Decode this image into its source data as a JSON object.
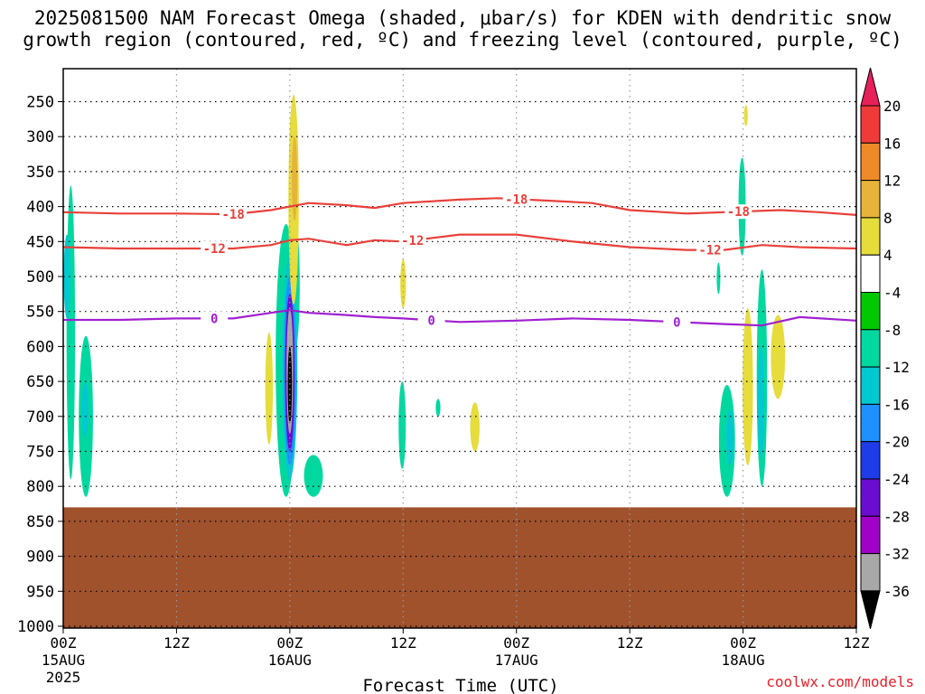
{
  "title_line1": "2025081500 NAM Forecast Omega (shaded, μbar/s) for KDEN with dendritic snow",
  "title_line2": "growth region (contoured, red, ºC) and freezing level (contoured, purple, ºC)",
  "credit": "coolwx.com/models",
  "chart_data": {
    "type": "heatmap",
    "xlabel": "Forecast Time (UTC)",
    "x_ticks": [
      {
        "hour": 0,
        "label": "00Z",
        "sub1": "15AUG",
        "sub2": "2025"
      },
      {
        "hour": 12,
        "label": "12Z",
        "sub1": "",
        "sub2": ""
      },
      {
        "hour": 24,
        "label": "00Z",
        "sub1": "16AUG",
        "sub2": ""
      },
      {
        "hour": 36,
        "label": "12Z",
        "sub1": "",
        "sub2": ""
      },
      {
        "hour": 48,
        "label": "00Z",
        "sub1": "17AUG",
        "sub2": ""
      },
      {
        "hour": 60,
        "label": "12Z",
        "sub1": "",
        "sub2": ""
      },
      {
        "hour": 72,
        "label": "00Z",
        "sub1": "18AUG",
        "sub2": ""
      },
      {
        "hour": 84,
        "label": "12Z",
        "sub1": "",
        "sub2": ""
      }
    ],
    "x_range_hours": [
      0,
      84
    ],
    "y_ticks": [
      250,
      300,
      350,
      400,
      450,
      500,
      550,
      600,
      650,
      700,
      750,
      800,
      850,
      900,
      950,
      1000
    ],
    "y_range_mb": [
      200,
      1025
    ],
    "grid": true,
    "terrain_pressure_mb": 830,
    "terrain_color": "#a0522d",
    "colorbar": {
      "ticks": [
        "20",
        "16",
        "12",
        "8",
        "4",
        "-4",
        "-8",
        "-12",
        "-16",
        "-20",
        "-24",
        "-28",
        "-32",
        "-36"
      ],
      "colors": [
        "#e8205a",
        "#f03a3a",
        "#ee8a28",
        "#e6b43a",
        "#e6dc3c",
        "#ffffff",
        "#00c800",
        "#00d8a0",
        "#00c8d0",
        "#1e90ff",
        "#1e3ce8",
        "#6a0dd0",
        "#a000c8",
        "#a8a8a8",
        "#000000"
      ]
    },
    "contours": [
      {
        "label": "-18",
        "color": "#e8403a",
        "label_hours": [
          18,
          48,
          71.5
        ],
        "points": [
          [
            0,
            408
          ],
          [
            6,
            410
          ],
          [
            12,
            410
          ],
          [
            18,
            411
          ],
          [
            22,
            405
          ],
          [
            24,
            400
          ],
          [
            26,
            395
          ],
          [
            30,
            398
          ],
          [
            33,
            402
          ],
          [
            36,
            395
          ],
          [
            42,
            390
          ],
          [
            46,
            388
          ],
          [
            52,
            392
          ],
          [
            56,
            395
          ],
          [
            60,
            405
          ],
          [
            66,
            410
          ],
          [
            70,
            408
          ],
          [
            76,
            405
          ],
          [
            80,
            408
          ],
          [
            84,
            412
          ]
        ]
      },
      {
        "label": "-12",
        "color": "#e8403a",
        "label_hours": [
          16,
          37,
          68.5
        ],
        "points": [
          [
            0,
            458
          ],
          [
            6,
            460
          ],
          [
            12,
            460
          ],
          [
            18,
            460
          ],
          [
            22,
            455
          ],
          [
            24,
            448
          ],
          [
            26,
            446
          ],
          [
            30,
            455
          ],
          [
            33,
            448
          ],
          [
            36,
            450
          ],
          [
            42,
            440
          ],
          [
            48,
            440
          ],
          [
            54,
            450
          ],
          [
            60,
            458
          ],
          [
            66,
            462
          ],
          [
            70,
            462
          ],
          [
            74,
            455
          ],
          [
            78,
            458
          ],
          [
            84,
            460
          ]
        ]
      },
      {
        "label": "0",
        "color": "#a020d0",
        "label_hours": [
          16,
          39,
          65
        ],
        "points": [
          [
            0,
            562
          ],
          [
            6,
            562
          ],
          [
            12,
            560
          ],
          [
            18,
            560
          ],
          [
            22,
            552
          ],
          [
            24,
            548
          ],
          [
            26,
            552
          ],
          [
            30,
            555
          ],
          [
            33,
            558
          ],
          [
            36,
            560
          ],
          [
            42,
            565
          ],
          [
            48,
            563
          ],
          [
            54,
            560
          ],
          [
            60,
            562
          ],
          [
            65,
            565
          ],
          [
            70,
            568
          ],
          [
            74,
            570
          ],
          [
            78,
            558
          ],
          [
            84,
            563
          ]
        ]
      }
    ],
    "omega_blobs": [
      {
        "hour": 0.8,
        "p_top": 370,
        "p_bot": 790,
        "halfwidth_h": 0.45,
        "level": "-8"
      },
      {
        "hour": 2.4,
        "p_top": 585,
        "p_bot": 815,
        "halfwidth_h": 0.75,
        "level": "-8"
      },
      {
        "hour": 0.4,
        "p_top": 440,
        "p_bot": 560,
        "halfwidth_h": 0.35,
        "level": "-12"
      },
      {
        "hour": 2.3,
        "p_top": 650,
        "p_bot": 730,
        "halfwidth_h": 0.35,
        "level": "-12"
      },
      {
        "hour": 21.8,
        "p_top": 580,
        "p_bot": 740,
        "halfwidth_h": 0.4,
        "level": "4"
      },
      {
        "hour": 23.6,
        "p_top": 425,
        "p_bot": 815,
        "halfwidth_h": 1.1,
        "level": "-8"
      },
      {
        "hour": 24.6,
        "p_top": 425,
        "p_bot": 600,
        "halfwidth_h": 0.45,
        "level": "-8"
      },
      {
        "hour": 24.0,
        "p_top": 470,
        "p_bot": 790,
        "halfwidth_h": 0.8,
        "level": "-12"
      },
      {
        "hour": 24.0,
        "p_top": 500,
        "p_bot": 770,
        "halfwidth_h": 0.65,
        "level": "-16"
      },
      {
        "hour": 24.0,
        "p_top": 525,
        "p_bot": 750,
        "halfwidth_h": 0.5,
        "level": "-24"
      },
      {
        "hour": 24.0,
        "p_top": 545,
        "p_bot": 725,
        "halfwidth_h": 0.35,
        "level": "-32"
      },
      {
        "hour": 24.0,
        "p_top": 600,
        "p_bot": 710,
        "halfwidth_h": 0.22,
        "level": "-36"
      },
      {
        "hour": 26.5,
        "p_top": 755,
        "p_bot": 815,
        "halfwidth_h": 1.0,
        "level": "-8"
      },
      {
        "hour": 24.4,
        "p_top": 240,
        "p_bot": 540,
        "halfwidth_h": 0.55,
        "level": "4"
      },
      {
        "hour": 24.5,
        "p_top": 300,
        "p_bot": 420,
        "halfwidth_h": 0.3,
        "level": "8"
      },
      {
        "hour": 36.0,
        "p_top": 475,
        "p_bot": 545,
        "halfwidth_h": 0.3,
        "level": "4"
      },
      {
        "hour": 35.9,
        "p_top": 650,
        "p_bot": 775,
        "halfwidth_h": 0.38,
        "level": "-8"
      },
      {
        "hour": 39.7,
        "p_top": 675,
        "p_bot": 700,
        "halfwidth_h": 0.25,
        "level": "-8"
      },
      {
        "hour": 43.6,
        "p_top": 680,
        "p_bot": 750,
        "halfwidth_h": 0.5,
        "level": "4"
      },
      {
        "hour": 69.4,
        "p_top": 480,
        "p_bot": 525,
        "halfwidth_h": 0.1,
        "level": "-8"
      },
      {
        "hour": 70.3,
        "p_top": 655,
        "p_bot": 815,
        "halfwidth_h": 0.85,
        "level": "-8"
      },
      {
        "hour": 70.6,
        "p_top": 690,
        "p_bot": 770,
        "halfwidth_h": 0.4,
        "level": "-12"
      },
      {
        "hour": 71.9,
        "p_top": 330,
        "p_bot": 470,
        "halfwidth_h": 0.38,
        "level": "-8"
      },
      {
        "hour": 72.3,
        "p_top": 255,
        "p_bot": 285,
        "halfwidth_h": 0.2,
        "level": "4"
      },
      {
        "hour": 72.5,
        "p_top": 545,
        "p_bot": 770,
        "halfwidth_h": 0.55,
        "level": "4"
      },
      {
        "hour": 74.0,
        "p_top": 490,
        "p_bot": 800,
        "halfwidth_h": 0.55,
        "level": "-8"
      },
      {
        "hour": 73.9,
        "p_top": 600,
        "p_bot": 760,
        "halfwidth_h": 0.35,
        "level": "-12"
      },
      {
        "hour": 75.7,
        "p_top": 555,
        "p_bot": 675,
        "halfwidth_h": 0.75,
        "level": "4"
      }
    ]
  }
}
